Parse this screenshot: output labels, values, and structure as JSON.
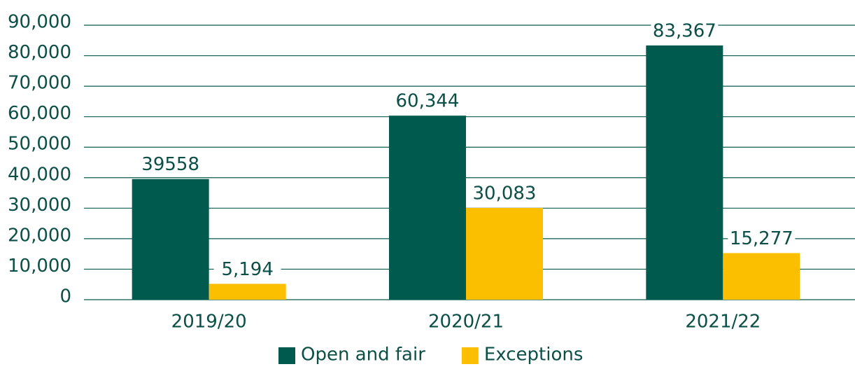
{
  "chart_data": {
    "type": "bar",
    "categories": [
      "2019/20",
      "2020/21",
      "2021/22"
    ],
    "series": [
      {
        "name": "Open and fair",
        "color": "#005a4e",
        "values": [
          39558,
          60344,
          83367
        ],
        "value_labels": [
          "39558",
          "60,344",
          "83,367"
        ]
      },
      {
        "name": "Exceptions",
        "color": "#fbbf00",
        "values": [
          5194,
          30083,
          15277
        ],
        "value_labels": [
          "5,194",
          "30,083",
          "15,277"
        ]
      }
    ],
    "ylim": [
      0,
      90000
    ],
    "yticks": [
      0,
      {
        "value": 10000,
        "label": "10,000"
      },
      {
        "value": 20000,
        "label": "20,000"
      },
      {
        "value": 30000,
        "label": "30,000"
      },
      {
        "value": 40000,
        "label": "40,000"
      },
      {
        "value": 50000,
        "label": "50,000"
      },
      {
        "value": 60000,
        "label": "60,000"
      },
      {
        "value": 70000,
        "label": "70,000"
      },
      {
        "value": 80000,
        "label": "80,000"
      },
      {
        "value": 90000,
        "label": "90,000"
      }
    ],
    "grid": true,
    "legend": "bottom"
  }
}
